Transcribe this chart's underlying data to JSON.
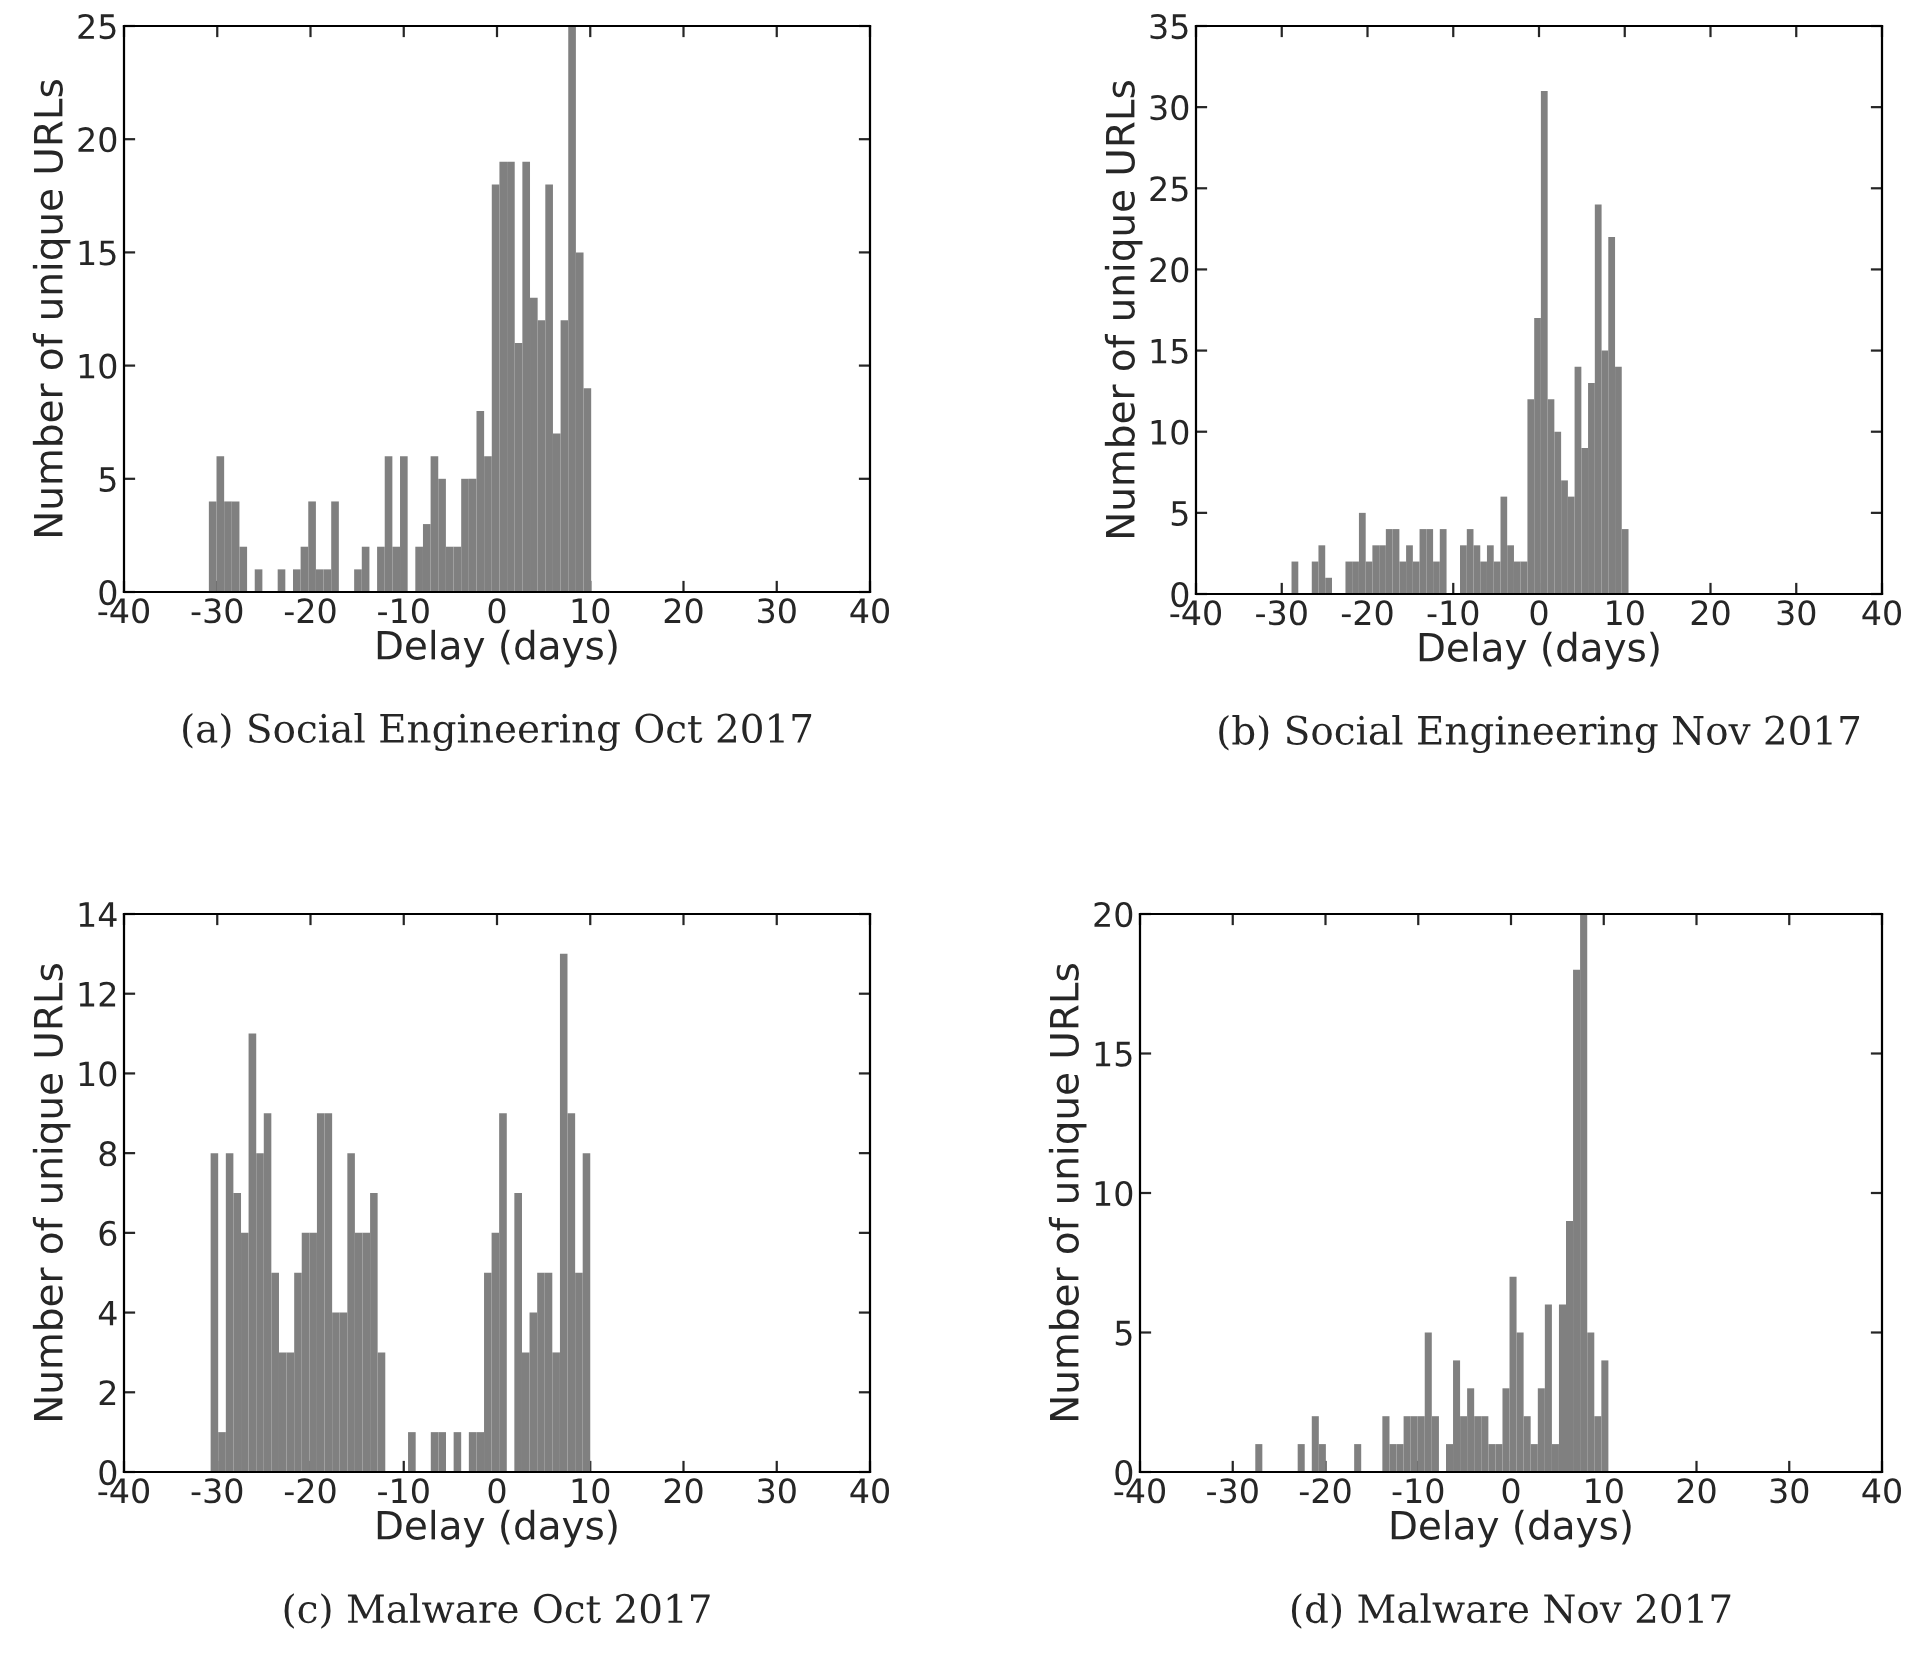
{
  "chart_data": [
    {
      "type": "histogram",
      "title": "(a) Social Engineering Oct 2017",
      "xlabel": "Delay (days)",
      "ylabel": "Number of unique URLs",
      "color": "#808080",
      "grid": false,
      "bins": [
        -30.9,
        -30.08,
        -29.26,
        -28.44,
        -27.62,
        -26.8,
        -25.98,
        -25.16,
        -24.34,
        -23.52,
        -22.7,
        -21.88,
        -21.06,
        -20.24,
        -19.42,
        -18.6,
        -17.78,
        -16.96,
        -16.14,
        -15.32,
        -14.5,
        -13.68,
        -12.86,
        -12.04,
        -11.22,
        -10.4,
        -9.58,
        -8.76,
        -7.94,
        -7.12,
        -6.3,
        -5.48,
        -4.66,
        -3.84,
        -3.02,
        -2.2,
        -1.38,
        -0.56,
        0.26,
        1.08,
        1.9,
        2.72,
        3.54,
        4.36,
        5.18,
        6.0,
        6.82,
        7.64,
        8.46,
        9.28,
        10.1
      ],
      "values": [
        4,
        6,
        4,
        4,
        2,
        0,
        1,
        0,
        0,
        1,
        0,
        1,
        2,
        4,
        1,
        1,
        4,
        0,
        0,
        1,
        2,
        0,
        2,
        6,
        2,
        6,
        0,
        2,
        3,
        6,
        5,
        2,
        2,
        5,
        5,
        8,
        6,
        18,
        19,
        19,
        11,
        19,
        13,
        12,
        18,
        7,
        12,
        25,
        15,
        9
      ],
      "xlim": [
        -40,
        40
      ],
      "xticks": [
        -40,
        -30,
        -20,
        -10,
        0,
        10,
        20,
        30,
        40
      ],
      "ylim": [
        0,
        25
      ],
      "yticks": [
        0,
        5,
        10,
        15,
        20,
        25
      ]
    },
    {
      "type": "histogram",
      "title": "(b) Social Engineering Nov 2017",
      "xlabel": "Delay (days)",
      "ylabel": "Number of unique URLs",
      "color": "#808080",
      "grid": false,
      "bins": [
        -28.86,
        -28.07,
        -27.29,
        -26.5,
        -25.72,
        -24.93,
        -24.14,
        -23.36,
        -22.57,
        -21.79,
        -21.0,
        -20.21,
        -19.43,
        -18.64,
        -17.86,
        -17.07,
        -16.28,
        -15.5,
        -14.71,
        -13.93,
        -13.14,
        -12.35,
        -11.57,
        -10.78,
        -10.0,
        -9.21,
        -8.42,
        -7.64,
        -6.85,
        -6.07,
        -5.28,
        -4.49,
        -3.71,
        -2.92,
        -2.14,
        -1.35,
        -0.56,
        0.22,
        1.01,
        1.79,
        2.58,
        3.37,
        4.15,
        4.94,
        5.72,
        6.51,
        7.3,
        8.08,
        8.87,
        9.65,
        10.44
      ],
      "values": [
        2,
        0,
        0,
        2,
        3,
        1,
        0,
        0,
        2,
        2,
        5,
        2,
        3,
        3,
        4,
        4,
        2,
        3,
        2,
        4,
        4,
        2,
        4,
        0,
        0,
        3,
        4,
        3,
        2,
        3,
        2,
        6,
        3,
        2,
        2,
        12,
        17,
        31,
        12,
        10,
        7,
        6,
        14,
        9,
        13,
        24,
        15,
        22,
        14,
        4
      ],
      "xlim": [
        -40,
        40
      ],
      "xticks": [
        -40,
        -30,
        -20,
        -10,
        0,
        10,
        20,
        30,
        40
      ],
      "ylim": [
        0,
        35
      ],
      "yticks": [
        0,
        5,
        10,
        15,
        20,
        25,
        30,
        35
      ]
    },
    {
      "type": "histogram",
      "title": "(c) Malware Oct 2017",
      "xlabel": "Delay (days)",
      "ylabel": "Number of unique URLs",
      "color": "#808080",
      "grid": false,
      "bins": [
        -30.71,
        -29.9,
        -29.08,
        -28.27,
        -27.45,
        -26.64,
        -25.82,
        -25.01,
        -24.2,
        -23.38,
        -22.57,
        -21.75,
        -20.94,
        -20.12,
        -19.31,
        -18.5,
        -17.68,
        -16.87,
        -16.05,
        -15.24,
        -14.42,
        -13.61,
        -12.8,
        -11.98,
        -11.17,
        -10.35,
        -9.54,
        -8.72,
        -7.91,
        -7.1,
        -6.28,
        -5.47,
        -4.65,
        -3.84,
        -3.02,
        -2.21,
        -1.39,
        -0.58,
        0.23,
        1.05,
        1.86,
        2.68,
        3.49,
        4.31,
        5.12,
        5.93,
        6.75,
        7.56,
        8.38,
        9.19,
        10.0
      ],
      "values": [
        8,
        1,
        8,
        7,
        6,
        11,
        8,
        9,
        5,
        3,
        3,
        5,
        6,
        6,
        9,
        9,
        4,
        4,
        8,
        6,
        6,
        7,
        3,
        0,
        0,
        0,
        1,
        0,
        0,
        1,
        1,
        0,
        1,
        0,
        1,
        1,
        5,
        6,
        9,
        0,
        7,
        3,
        4,
        5,
        5,
        3,
        13,
        9,
        5,
        8
      ],
      "xlim": [
        -40,
        40
      ],
      "xticks": [
        -40,
        -30,
        -20,
        -10,
        0,
        10,
        20,
        30,
        40
      ],
      "ylim": [
        0,
        14
      ],
      "yticks": [
        0,
        2,
        4,
        6,
        8,
        10,
        12,
        14
      ]
    },
    {
      "type": "histogram",
      "title": "(d) Malware Nov 2017",
      "xlabel": "Delay (days)",
      "ylabel": "Number of unique URLs",
      "color": "#808080",
      "grid": false,
      "bins": [
        -27.57,
        -26.81,
        -26.05,
        -25.29,
        -24.52,
        -23.76,
        -23.0,
        -22.24,
        -21.48,
        -20.72,
        -19.96,
        -19.19,
        -18.43,
        -17.67,
        -16.91,
        -16.15,
        -15.39,
        -14.63,
        -13.87,
        -13.1,
        -12.34,
        -11.58,
        -10.82,
        -10.06,
        -9.3,
        -8.54,
        -7.77,
        -7.01,
        -6.25,
        -5.49,
        -4.73,
        -3.97,
        -3.21,
        -2.44,
        -1.68,
        -0.92,
        -0.16,
        0.6,
        1.36,
        2.12,
        2.89,
        3.65,
        4.41,
        5.17,
        5.93,
        6.69,
        7.45,
        8.22,
        8.98,
        9.74,
        10.5
      ],
      "values": [
        1,
        0,
        0,
        0,
        0,
        0,
        1,
        0,
        2,
        1,
        0,
        0,
        0,
        0,
        1,
        0,
        0,
        0,
        2,
        1,
        1,
        2,
        2,
        2,
        5,
        2,
        0,
        1,
        4,
        2,
        3,
        2,
        2,
        1,
        1,
        3,
        7,
        5,
        2,
        1,
        3,
        6,
        1,
        6,
        9,
        18,
        20,
        5,
        2,
        4
      ],
      "xlim": [
        -40,
        40
      ],
      "xticks": [
        -40,
        -30,
        -20,
        -10,
        0,
        10,
        20,
        30,
        40
      ],
      "ylim": [
        0,
        20
      ],
      "yticks": [
        0,
        5,
        10,
        15,
        20
      ]
    }
  ]
}
